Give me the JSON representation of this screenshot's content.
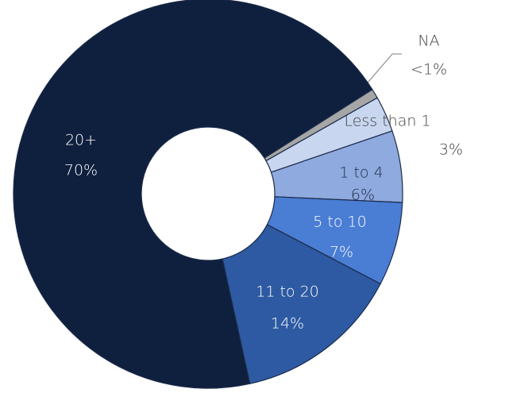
{
  "chart_data": {
    "type": "donut",
    "categories": [
      "NA",
      "Less than 1",
      "1 to 4",
      "5 to 10",
      "11 to 20",
      "20+"
    ],
    "values": [
      0.8,
      3,
      6,
      7,
      14,
      70
    ],
    "value_labels": [
      "<1%",
      "3%",
      "6%",
      "7%",
      "14%",
      "70%"
    ],
    "colors": [
      "#a6a6a6",
      "#c8d6f0",
      "#8eaade",
      "#4a7dd4",
      "#2d5aa2",
      "#0f1f3e"
    ]
  }
}
